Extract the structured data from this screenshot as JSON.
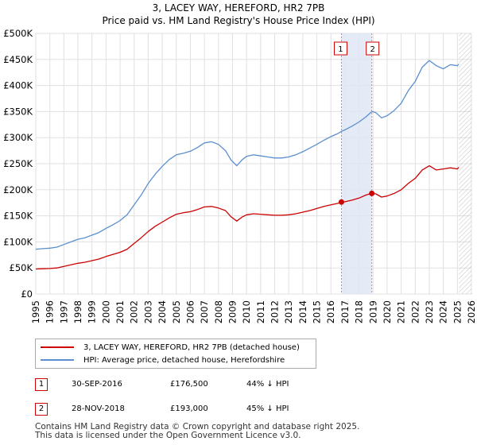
{
  "chart_data": {
    "type": "line",
    "title": "3, LACEY WAY, HEREFORD, HR2 7PB",
    "subtitle": "Price paid vs. HM Land Registry's House Price Index (HPI)",
    "xlim": [
      1995,
      2026
    ],
    "ylim": [
      0,
      500000
    ],
    "x_ticks": [
      "1995",
      "1996",
      "1997",
      "1998",
      "1999",
      "2000",
      "2001",
      "2002",
      "2003",
      "2004",
      "2005",
      "2006",
      "2007",
      "2008",
      "2009",
      "2010",
      "2011",
      "2012",
      "2013",
      "2014",
      "2015",
      "2016",
      "2017",
      "2018",
      "2019",
      "2020",
      "2021",
      "2022",
      "2023",
      "2024",
      "2025",
      "2026"
    ],
    "y_ticks": [
      {
        "value": 0,
        "label": "£0"
      },
      {
        "value": 50000,
        "label": "£50K"
      },
      {
        "value": 100000,
        "label": "£100K"
      },
      {
        "value": 150000,
        "label": "£150K"
      },
      {
        "value": 200000,
        "label": "£200K"
      },
      {
        "value": 250000,
        "label": "£250K"
      },
      {
        "value": 300000,
        "label": "£300K"
      },
      {
        "value": 350000,
        "label": "£350K"
      },
      {
        "value": 400000,
        "label": "£400K"
      },
      {
        "value": 450000,
        "label": "£450K"
      },
      {
        "value": 500000,
        "label": "£500K"
      }
    ],
    "grid": true,
    "shaded_region": [
      2016.75,
      2018.91
    ],
    "forecast_start": 2025.1,
    "series": [
      {
        "name": "3, LACEY WAY, HEREFORD, HR2 7PB (detached house)",
        "color": "#cc0000",
        "x": [
          1995,
          1995.5,
          1996,
          1996.5,
          1997,
          1997.5,
          1998,
          1998.5,
          1999,
          1999.5,
          2000,
          2000.5,
          2001,
          2001.5,
          2002,
          2002.5,
          2003,
          2003.5,
          2004,
          2004.5,
          2005,
          2005.5,
          2006,
          2006.5,
          2007,
          2007.5,
          2008,
          2008.5,
          2008.9,
          2009.3,
          2009.7,
          2010,
          2010.5,
          2011,
          2011.5,
          2012,
          2012.5,
          2013,
          2013.5,
          2014,
          2014.5,
          2015,
          2015.5,
          2016,
          2016.5,
          2016.75,
          2017,
          2017.5,
          2018,
          2018.5,
          2018.91,
          2019.2,
          2019.6,
          2020,
          2020.5,
          2021,
          2021.5,
          2022,
          2022.5,
          2023,
          2023.5,
          2024,
          2024.5,
          2025,
          2025.1
        ],
        "y": [
          48000,
          48500,
          49000,
          50000,
          53000,
          56000,
          59000,
          61000,
          64000,
          67000,
          72000,
          76000,
          80000,
          86000,
          97000,
          108000,
          120000,
          130000,
          138000,
          146000,
          153000,
          156000,
          158000,
          162000,
          167000,
          168000,
          165000,
          160000,
          148000,
          140000,
          148000,
          152000,
          154000,
          153000,
          152000,
          151000,
          151000,
          152000,
          154000,
          157000,
          160000,
          164000,
          168000,
          171000,
          174000,
          176500,
          177000,
          180000,
          184000,
          190000,
          193000,
          192000,
          186000,
          188000,
          193000,
          200000,
          212000,
          222000,
          238000,
          246000,
          238000,
          240000,
          242000,
          240000,
          243000
        ]
      },
      {
        "name": "HPI: Average price, detached house, Herefordshire",
        "color": "#5b8fcf",
        "x": [
          1995,
          1995.5,
          1996,
          1996.5,
          1997,
          1997.5,
          1998,
          1998.5,
          1999,
          1999.5,
          2000,
          2000.5,
          2001,
          2001.5,
          2002,
          2002.5,
          2003,
          2003.5,
          2004,
          2004.5,
          2005,
          2005.5,
          2006,
          2006.5,
          2007,
          2007.5,
          2008,
          2008.5,
          2008.9,
          2009.3,
          2009.7,
          2010,
          2010.5,
          2011,
          2011.5,
          2012,
          2012.5,
          2013,
          2013.5,
          2014,
          2014.5,
          2015,
          2015.5,
          2016,
          2016.5,
          2016.75,
          2017,
          2017.5,
          2018,
          2018.5,
          2018.91,
          2019.2,
          2019.6,
          2020,
          2020.5,
          2021,
          2021.5,
          2022,
          2022.5,
          2023,
          2023.5,
          2024,
          2024.5,
          2025,
          2025.1
        ],
        "y": [
          86000,
          87000,
          88000,
          90000,
          95000,
          100000,
          105000,
          108000,
          113000,
          118000,
          126000,
          133000,
          141000,
          152000,
          171000,
          190000,
          212000,
          230000,
          245000,
          258000,
          267000,
          270000,
          274000,
          281000,
          290000,
          292000,
          287000,
          275000,
          257000,
          246000,
          258000,
          264000,
          267000,
          265000,
          263000,
          261000,
          261000,
          263000,
          267000,
          273000,
          280000,
          287000,
          295000,
          302000,
          308000,
          312000,
          315000,
          322000,
          330000,
          340000,
          350000,
          348000,
          338000,
          342000,
          352000,
          366000,
          390000,
          408000,
          435000,
          448000,
          438000,
          432000,
          440000,
          438000,
          441000
        ]
      }
    ],
    "transactions": [
      {
        "id": "1",
        "x": 2016.75,
        "y": 176500,
        "date": "30-SEP-2016",
        "price": "£176,500",
        "hpi": "44% ↓ HPI"
      },
      {
        "id": "2",
        "x": 2018.91,
        "y": 193000,
        "date": "28-NOV-2018",
        "price": "£193,000",
        "hpi": "45% ↓ HPI"
      }
    ]
  },
  "footer": {
    "line1": "Contains HM Land Registry data © Crown copyright and database right 2025.",
    "line2": "This data is licensed under the Open Government Licence v3.0."
  },
  "colors": {
    "price_paid": "#cc0000",
    "hpi": "#5b8fcf",
    "shade": "#dde6f5"
  }
}
